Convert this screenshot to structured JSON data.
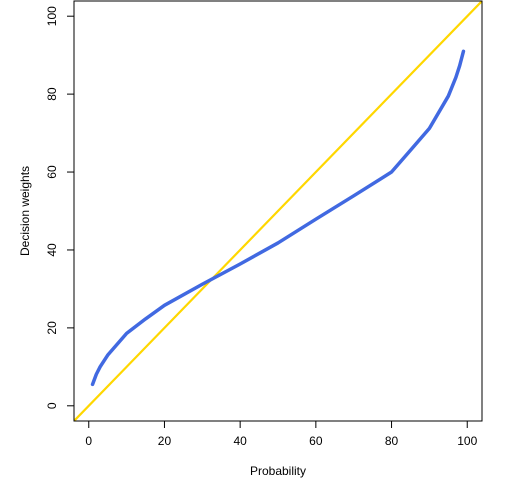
{
  "chart_data": {
    "type": "line",
    "title": "",
    "xlabel": "Probability",
    "ylabel": "Decision weights",
    "xlim": [
      -3.9,
      103.9
    ],
    "ylim": [
      -3.9,
      103.9
    ],
    "x_ticks": [
      0,
      20,
      40,
      60,
      80,
      100
    ],
    "y_ticks": [
      0,
      20,
      40,
      60,
      80,
      100
    ],
    "grid": false,
    "series": [
      {
        "name": "",
        "color": "#4169e1",
        "x": [
          1,
          2,
          3,
          5,
          10,
          15,
          20,
          30,
          40,
          50,
          60,
          70,
          80,
          85,
          90,
          95,
          97,
          98,
          99
        ],
        "y": [
          5.5,
          8.1,
          10,
          13,
          18.6,
          22.3,
          25.8,
          31.2,
          36.4,
          41.8,
          47.9,
          53.9,
          60,
          65.6,
          71.2,
          79.5,
          84.3,
          87.3,
          91
        ]
      },
      {
        "name": "",
        "color": "#ffd700",
        "x": [
          -3.9,
          103.9
        ],
        "y": [
          -3.9,
          103.9
        ]
      }
    ]
  }
}
